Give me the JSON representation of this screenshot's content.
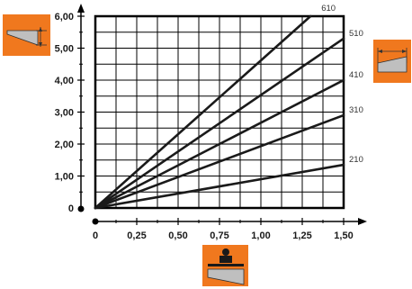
{
  "colors": {
    "accent": "#f0781e",
    "grid": "#000000",
    "line": "#1a1a1a"
  },
  "icons": {
    "vertical_dimension": "wedge-thickness-icon",
    "horizontal_dimension": "wedge-length-icon",
    "load": "load-weight-icon"
  },
  "chart_data": {
    "type": "line",
    "title": "",
    "xlabel": "",
    "ylabel": "",
    "xlim": [
      0,
      1.5
    ],
    "ylim": [
      0,
      6
    ],
    "grid": true,
    "x_ticks": [
      "0",
      "0,25",
      "0,50",
      "0,75",
      "1,00",
      "1,25",
      "1,50"
    ],
    "y_ticks": [
      "0",
      "1,00",
      "2,00",
      "3,00",
      "4,00",
      "5,00",
      "6,00"
    ],
    "series": [
      {
        "name": "610",
        "x": [
          0,
          1.3
        ],
        "y": [
          0,
          6.0
        ]
      },
      {
        "name": "510",
        "x": [
          0,
          1.5
        ],
        "y": [
          0,
          5.3
        ]
      },
      {
        "name": "410",
        "x": [
          0,
          1.5
        ],
        "y": [
          0,
          4.0
        ]
      },
      {
        "name": "310",
        "x": [
          0,
          1.5
        ],
        "y": [
          0,
          2.9
        ]
      },
      {
        "name": "210",
        "x": [
          0,
          1.5
        ],
        "y": [
          0,
          1.35
        ]
      }
    ]
  }
}
